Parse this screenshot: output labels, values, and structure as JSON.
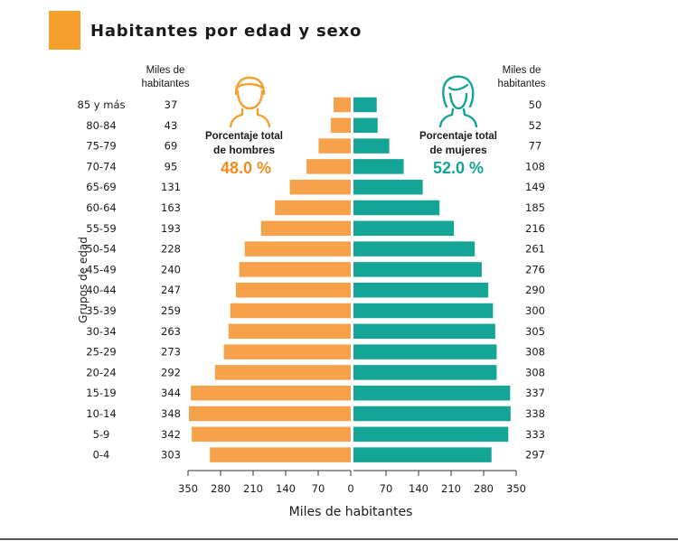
{
  "header": {
    "title": "Habitantes por edad y sexo"
  },
  "labels": {
    "left_unit_line1": "Miles de",
    "left_unit_line2": "habitantes",
    "right_unit_line1": "Miles de",
    "right_unit_line2": "habitantes",
    "men_caption_line1": "Porcentaje total",
    "men_caption_line2": "de hombres",
    "men_percent": "48.0 %",
    "women_caption_line1": "Porcentaje total",
    "women_caption_line2": "de mujeres",
    "women_percent": "52.0 %"
  },
  "chart_data": {
    "type": "bar",
    "orientation": "horizontal-butterfly",
    "ylabel": "Grupos de edad",
    "xlabel": "Miles de habitantes",
    "xlim": [
      0,
      350
    ],
    "xticks_left": [
      350,
      280,
      210,
      140,
      70,
      0
    ],
    "xticks_right": [
      70,
      140,
      210,
      280,
      350
    ],
    "categories": [
      "85 y más",
      "80-84",
      "75-79",
      "70-74",
      "65-69",
      "60-64",
      "55-59",
      "50-54",
      "45-49",
      "40-44",
      "35-39",
      "30-34",
      "25-29",
      "20-24",
      "15-19",
      "10-14",
      "5-9",
      "0-4"
    ],
    "series": [
      {
        "side": "left",
        "color": "#f5a24a",
        "values": [
          37,
          43,
          69,
          95,
          131,
          163,
          193,
          228,
          240,
          247,
          259,
          263,
          273,
          292,
          344,
          348,
          342,
          303
        ]
      },
      {
        "side": "right",
        "color": "#15a597",
        "values": [
          50,
          52,
          77,
          108,
          149,
          185,
          216,
          261,
          276,
          290,
          300,
          305,
          308,
          308,
          337,
          338,
          333,
          297
        ]
      }
    ],
    "colors": {
      "men": "#f5a24a",
      "women": "#15a597",
      "men_text": "#f08c1e",
      "women_text": "#13a493"
    }
  }
}
